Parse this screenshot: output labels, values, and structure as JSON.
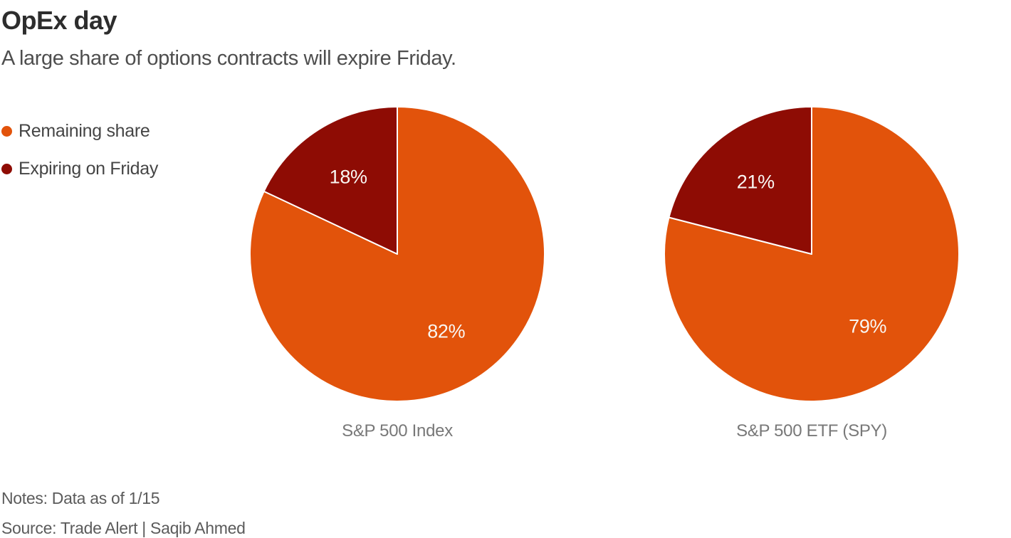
{
  "header": {
    "title": "OpEx day",
    "subtitle": "A large share of options contracts will expire Friday."
  },
  "chart_data": {
    "type": "pie",
    "title": "OpEx day",
    "subtitle": "A large share of options contracts will expire Friday.",
    "legend_position": "left",
    "series_labels": [
      "Remaining share",
      "Expiring on Friday"
    ],
    "colors": [
      "#E2530B",
      "#8E0C04"
    ],
    "label_color": "#F9F6F2",
    "pies": [
      {
        "category": "S&P 500 Index",
        "slices": [
          {
            "label": "Remaining share",
            "value": 82,
            "display": "82%"
          },
          {
            "label": "Expiring on Friday",
            "value": 18,
            "display": "18%"
          }
        ]
      },
      {
        "category": "S&P 500 ETF (SPY)",
        "slices": [
          {
            "label": "Remaining share",
            "value": 79,
            "display": "79%"
          },
          {
            "label": "Expiring on Friday",
            "value": 21,
            "display": "21%"
          }
        ]
      }
    ]
  },
  "footer": {
    "notes": "Notes: Data as of 1/15",
    "source": "Source: Trade Alert | Saqib Ahmed"
  }
}
